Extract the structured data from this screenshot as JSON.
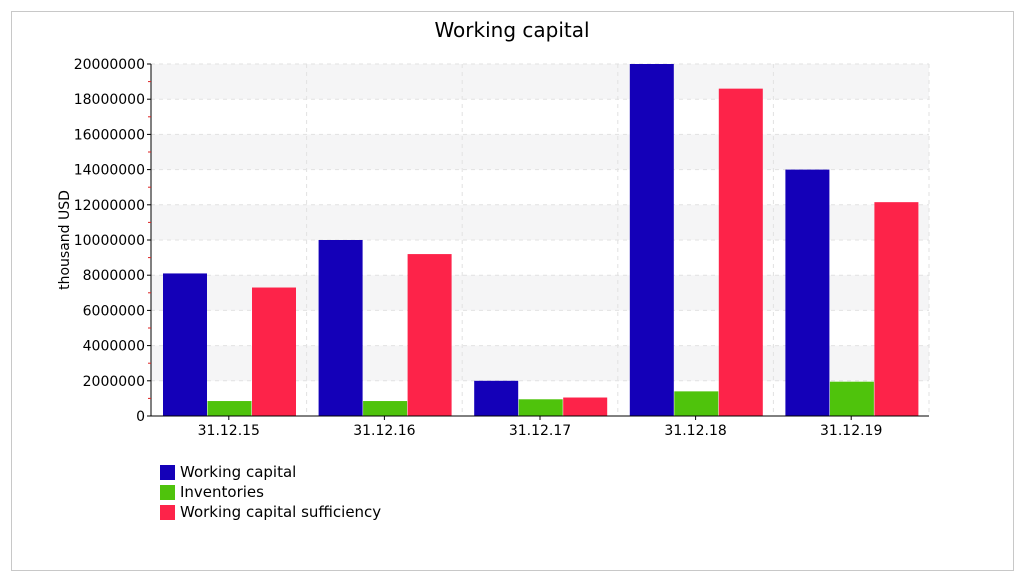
{
  "chart_data": {
    "type": "bar",
    "title": "Working capital",
    "xlabel": "",
    "ylabel": "thousand USD",
    "categories": [
      "31.12.15",
      "31.12.16",
      "31.12.17",
      "31.12.18",
      "31.12.19"
    ],
    "series": [
      {
        "name": "Working capital",
        "color": "#1400b8",
        "values": [
          8100000,
          10000000,
          2000000,
          20000000,
          14000000
        ]
      },
      {
        "name": "Inventories",
        "color": "#4fc30c",
        "values": [
          850000,
          850000,
          950000,
          1400000,
          1950000
        ]
      },
      {
        "name": "Working capital sufficiency",
        "color": "#fd2349",
        "values": [
          7300000,
          9200000,
          1050000,
          18600000,
          12150000
        ]
      }
    ],
    "ylim": [
      0,
      20000000
    ],
    "yticks": [
      0,
      2000000,
      4000000,
      6000000,
      8000000,
      10000000,
      12000000,
      14000000,
      16000000,
      18000000,
      20000000
    ],
    "grid": true,
    "legend_position": "bottom-left"
  }
}
